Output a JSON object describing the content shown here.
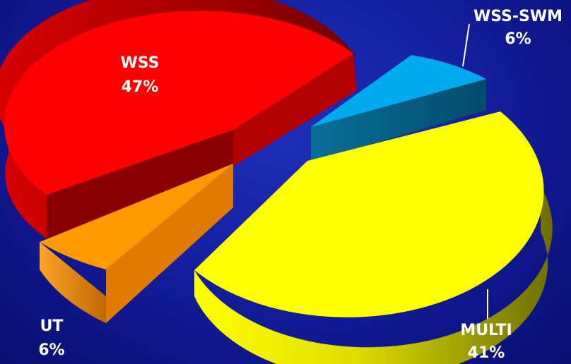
{
  "chart_data": {
    "type": "pie",
    "style": "3d-exploded",
    "labels": [
      "WSS",
      "WSS-SWM",
      "MULTI",
      "UT"
    ],
    "values": [
      47,
      6,
      41,
      6
    ],
    "value_labels": [
      "47%",
      "6%",
      "41%",
      "6%"
    ],
    "colors": [
      "#ff0000",
      "#00aaee",
      "#ffff00",
      "#ff9900"
    ],
    "title": "",
    "legend": "none"
  }
}
